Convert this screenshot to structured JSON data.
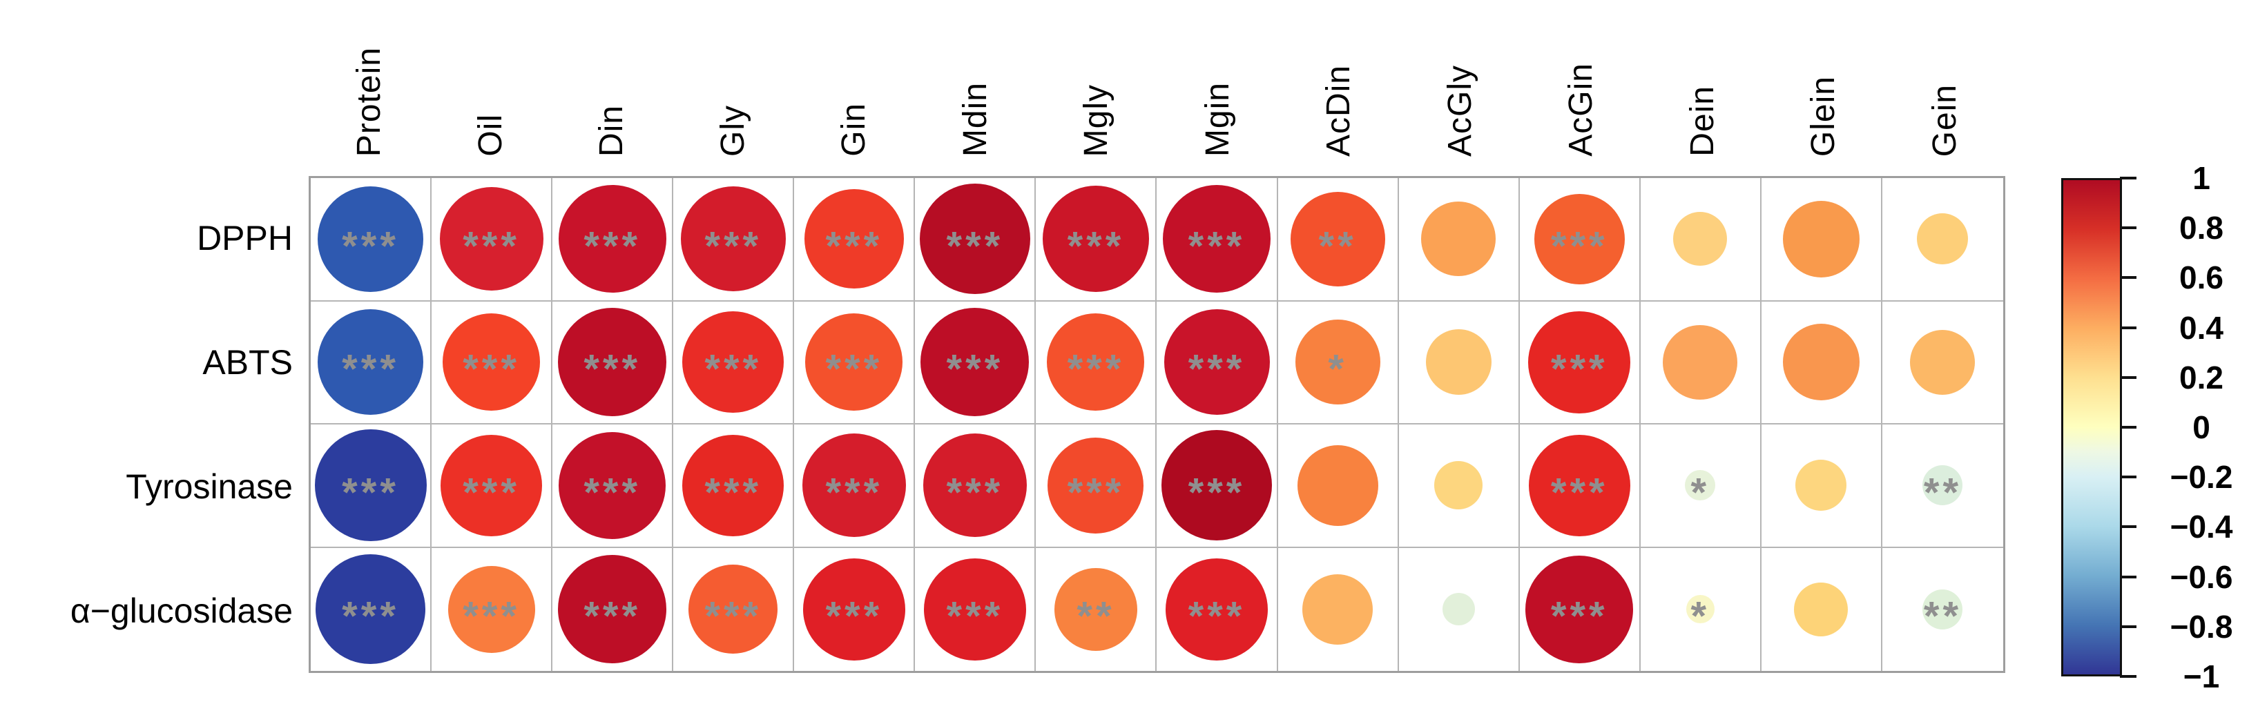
{
  "chart_data": {
    "type": "heatmap",
    "subtype": "correlation-circle-matrix",
    "title": "",
    "legend_position": "right",
    "grid": true,
    "value_range": [
      -1,
      1
    ],
    "size_encoding": "circle diameter proportional to sqrt(|r|)",
    "columns": [
      "Protein",
      "Oil",
      "Din",
      "Gly",
      "Gin",
      "Mdin",
      "Mgly",
      "Mgin",
      "AcDin",
      "AcGly",
      "AcGin",
      "Dein",
      "Glein",
      "Gein"
    ],
    "rows": [
      "DPPH",
      "ABTS",
      "Tyrosinase",
      "α−glucosidase"
    ],
    "series": [
      {
        "name": "DPPH",
        "values": [
          -0.85,
          0.82,
          0.88,
          0.84,
          0.75,
          0.93,
          0.86,
          0.88,
          0.68,
          0.42,
          0.62,
          0.22,
          0.45,
          0.2
        ],
        "colors": [
          "#2e59b0",
          "#d7202e",
          "#c8132a",
          "#d31c2b",
          "#ef3b28",
          "#b60d24",
          "#cb1628",
          "#c31128",
          "#f3512c",
          "#fba254",
          "#f4602f",
          "#fdd07e",
          "#f99a4c",
          "#fdcf79"
        ],
        "significance": [
          "***",
          "***",
          "***",
          "***",
          "***",
          "***",
          "***",
          "***",
          "**",
          "",
          "***",
          "",
          "",
          ""
        ]
      },
      {
        "name": "ABTS",
        "values": [
          -0.85,
          0.72,
          0.9,
          0.78,
          0.72,
          0.9,
          0.72,
          0.85,
          0.55,
          0.33,
          0.8,
          0.42,
          0.45,
          0.32
        ],
        "colors": [
          "#2e59b0",
          "#f44227",
          "#bd0e26",
          "#e92c26",
          "#f4512c",
          "#bd0e26",
          "#f4512c",
          "#c9142a",
          "#f8813f",
          "#fdc672",
          "#e62623",
          "#fba45b",
          "#f9964e",
          "#fcb866"
        ],
        "significance": [
          "***",
          "***",
          "***",
          "***",
          "***",
          "***",
          "***",
          "***",
          "*",
          "",
          "***",
          "",
          "",
          ""
        ]
      },
      {
        "name": "Tyrosinase",
        "values": [
          -0.95,
          0.78,
          0.87,
          0.78,
          0.82,
          0.82,
          0.7,
          0.93,
          0.5,
          0.18,
          0.78,
          -0.07,
          0.2,
          -0.12
        ],
        "colors": [
          "#2c3d9e",
          "#ec3026",
          "#c31129",
          "#e62823",
          "#d51d2b",
          "#d41c2a",
          "#f24a2b",
          "#ae0a20",
          "#f8823f",
          "#fdd67f",
          "#e62623",
          "#e7f2da",
          "#fdd67f",
          "#dceedd"
        ],
        "significance": [
          "***",
          "***",
          "***",
          "***",
          "***",
          "***",
          "***",
          "***",
          "",
          "",
          "***",
          "*",
          "",
          "**"
        ]
      },
      {
        "name": "α−glucosidase",
        "values": [
          -0.92,
          0.58,
          0.9,
          0.6,
          0.8,
          0.8,
          0.52,
          0.8,
          0.38,
          -0.08,
          0.88,
          0.06,
          0.22,
          -0.12
        ],
        "colors": [
          "#2c3d9e",
          "#f97c3e",
          "#bd0e26",
          "#f55c31",
          "#e01f26",
          "#de1e26",
          "#f8823f",
          "#e01f26",
          "#fcb261",
          "#e2f0da",
          "#c00f26",
          "#f8f6c6",
          "#fdd378",
          "#dff0d9"
        ],
        "significance": [
          "***",
          "***",
          "***",
          "***",
          "***",
          "***",
          "**",
          "***",
          "",
          "",
          "***",
          "*",
          "",
          "**"
        ]
      }
    ],
    "colorbar": {
      "tick_labels": [
        "1",
        "0.8",
        "0.6",
        "0.4",
        "0.2",
        "0",
        "−0.2",
        "−0.4",
        "−0.6",
        "−0.8",
        "−1"
      ],
      "tick_values": [
        1,
        0.8,
        0.6,
        0.4,
        0.2,
        0,
        -0.2,
        -0.4,
        -0.6,
        -0.8,
        -1
      ],
      "gradient_stops": [
        {
          "pos": 0,
          "color": "#b00c23"
        },
        {
          "pos": 10,
          "color": "#d73027"
        },
        {
          "pos": 20,
          "color": "#f46d43"
        },
        {
          "pos": 30,
          "color": "#fdae61"
        },
        {
          "pos": 40,
          "color": "#fee090"
        },
        {
          "pos": 50,
          "color": "#feffbf"
        },
        {
          "pos": 55,
          "color": "#eef8e4"
        },
        {
          "pos": 60,
          "color": "#d9f0f4"
        },
        {
          "pos": 70,
          "color": "#abd9e9"
        },
        {
          "pos": 80,
          "color": "#74add1"
        },
        {
          "pos": 90,
          "color": "#4575b4"
        },
        {
          "pos": 100,
          "color": "#313695"
        }
      ]
    },
    "style_colors": {
      "star_color": "#8f8f8f",
      "grid_line_color": "#b5b5b5",
      "grid_border_color": "#9e9e9e",
      "colorbar_border_color": "#111111"
    }
  }
}
